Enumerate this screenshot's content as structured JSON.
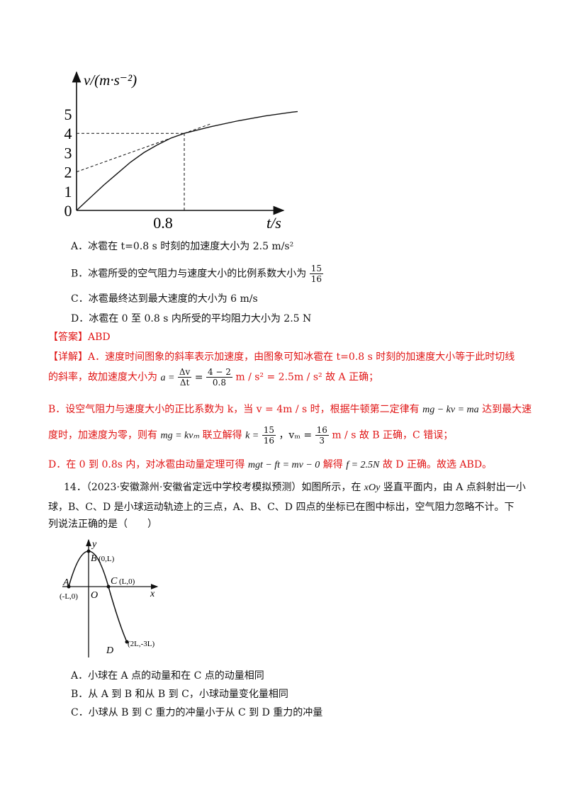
{
  "chart_data": {
    "type": "line",
    "ylabel": "v/(m·s⁻²)",
    "xlabel": "t/s",
    "yticks": [
      "5",
      "4",
      "3",
      "2",
      "1",
      "0"
    ],
    "xticks": [
      "0.8"
    ],
    "ylim": [
      0,
      5.5
    ],
    "series": [
      {
        "x": [
          0,
          0.1,
          0.2,
          0.3,
          0.4,
          0.5,
          0.6,
          0.7,
          0.8,
          1.0,
          1.2,
          1.4,
          1.6,
          1.8
        ],
        "y": [
          0,
          0.65,
          1.3,
          1.9,
          2.5,
          3.0,
          3.4,
          3.75,
          4.0,
          4.35,
          4.65,
          4.9,
          5.1,
          5.25
        ]
      },
      {
        "x": [
          0,
          1.0
        ],
        "y": [
          2,
          4.5
        ]
      },
      {
        "x": [
          0,
          0.8
        ],
        "y": [
          4,
          4
        ]
      },
      {
        "x": [
          0.8,
          0.8
        ],
        "y": [
          0,
          4
        ]
      }
    ]
  },
  "q13": {
    "A": "A．冰雹在 t=0.8 s 时刻的加速度大小为 2.5 m/s²",
    "B_pre": "B．冰雹所受的空气阻力与速度大小的比例系数大小为",
    "B_num": "15",
    "B_den": "16",
    "C": "C．冰雹最终达到最大速度的大小为 6 m/s",
    "D": "D．冰雹在 0 至 0.8 s 内所受的平均阻力大小为 2.5 N"
  },
  "answer": "【答案】ABD",
  "detail": {
    "l1": "【详解】A．速度时间图象的斜率表示加速度，由图象可知冰雹在 t=0.8 s 时刻的加速度大小等于此时切线",
    "l2_pre": "的斜率，故加速度大小为",
    "l2_a": "a =",
    "l2_f1n": "Δv",
    "l2_f1d": "Δt",
    "l2_f2n": "4 − 2",
    "l2_f2d": "0.8",
    "l2_tail": "m / s² = 2.5m / s² 故 A 正确；",
    "l3_pre": "B．设空气阻力与速度大小的正比系数为 k，当 v = 4m / s 时，根据牛顿第二定律有",
    "l3_eq": "mg − kv = ma",
    "l3_post": "达到最大速",
    "l4_pre": "度时，加速度为零，则有",
    "l4_eq": "mg = kvₘ",
    "l4_mid": "联立解得",
    "l4_k": "k =",
    "l4_kn": "15",
    "l4_kd": "16",
    "l4_vm": "，vₘ =",
    "l4_vn": "16",
    "l4_vd": "3",
    "l4_tail": "m / s 故 B 正确，C 错误；",
    "l5_pre": "D．在 0 到 0.8s 内，对冰雹由动量定理可得",
    "l5_eq": "mgt − ft = mv − 0",
    "l5_mid": "解得",
    "l5_f": "f = 2.5N",
    "l5_tail": "故 D 正确。故选 ABD。"
  },
  "q14": {
    "l1_pre": "14．（2023·安徽滁州·安徽省定远中学校考模拟预测）如图所示，在",
    "l1_xoy": "xOy",
    "l1_post": "竖直平面内，由 A 点斜射出一小",
    "l2": "球，B、C、D 是小球运动轨迹上的三点，A、B、C、D 四点的坐标已在图中标出，空气阻力忽略不计。下",
    "l3": "列说法正确的是（　　）",
    "A": "A．小球在 A 点的动量和在 C 点的动量相同",
    "B": "B．从 A 到 B 和从 B 到 C，小球动量变化量相同",
    "C": "C．小球从 B 到 C 重力的冲量小于从 C 到 D 重力的冲量"
  },
  "fig2": {
    "y": "y",
    "x": "x",
    "O": "O",
    "A": "A",
    "A_coord": "(-L,0)",
    "B": "B",
    "B_coord": "(0,L)",
    "C": "C",
    "C_coord": "(L,0)",
    "D": "D",
    "D_coord": "(2L,-3L)"
  }
}
